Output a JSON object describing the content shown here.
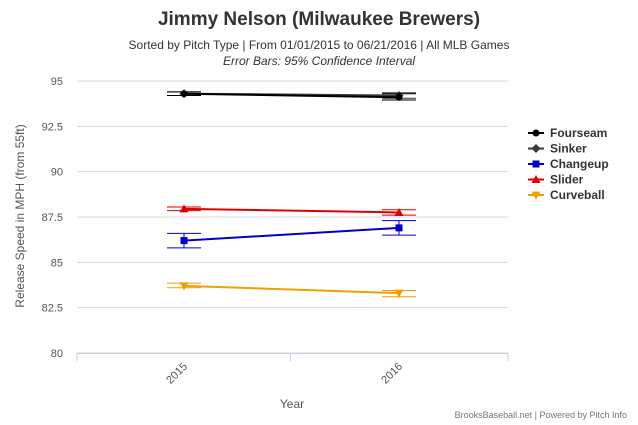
{
  "chart_data": {
    "type": "line",
    "title": "Jimmy Nelson (Milwaukee Brewers)",
    "subtitle": "Sorted by Pitch Type | From 01/01/2015 to 06/21/2016 | All MLB Games",
    "subtitle2": "Error Bars: 95% Confidence Interval",
    "xlabel": "Year",
    "ylabel": "Release Speed in MPH (from 55ft)",
    "categories": [
      "2015",
      "2016"
    ],
    "ylim": [
      80,
      95
    ],
    "yticks": [
      "80",
      "82.5",
      "85",
      "87.5",
      "90",
      "92.5",
      "95"
    ],
    "grid": true,
    "legend_position": "right",
    "series": [
      {
        "name": "Fourseam",
        "color": "#000000",
        "marker": "circle",
        "values": [
          94.3,
          94.1
        ],
        "err_low": [
          94.2,
          93.95
        ],
        "err_high": [
          94.4,
          94.3
        ]
      },
      {
        "name": "Sinker",
        "color": "#3a3a3a",
        "marker": "diamond",
        "values": [
          94.3,
          94.2
        ],
        "err_low": [
          94.2,
          94.05
        ],
        "err_high": [
          94.4,
          94.35
        ]
      },
      {
        "name": "Changeup",
        "color": "#0000cc",
        "marker": "square",
        "values": [
          86.2,
          86.9
        ],
        "err_low": [
          85.8,
          86.5
        ],
        "err_high": [
          86.6,
          87.3
        ]
      },
      {
        "name": "Slider",
        "color": "#dd0000",
        "marker": "triangle",
        "values": [
          87.95,
          87.75
        ],
        "err_low": [
          87.85,
          87.6
        ],
        "err_high": [
          88.05,
          87.9
        ]
      },
      {
        "name": "Curveball",
        "color": "#f0a000",
        "marker": "triangle-down",
        "values": [
          83.7,
          83.3
        ],
        "err_low": [
          83.6,
          83.1
        ],
        "err_high": [
          83.85,
          83.45
        ]
      }
    ],
    "credit": "BrooksBaseball.net | Powered by Pitch Info"
  }
}
